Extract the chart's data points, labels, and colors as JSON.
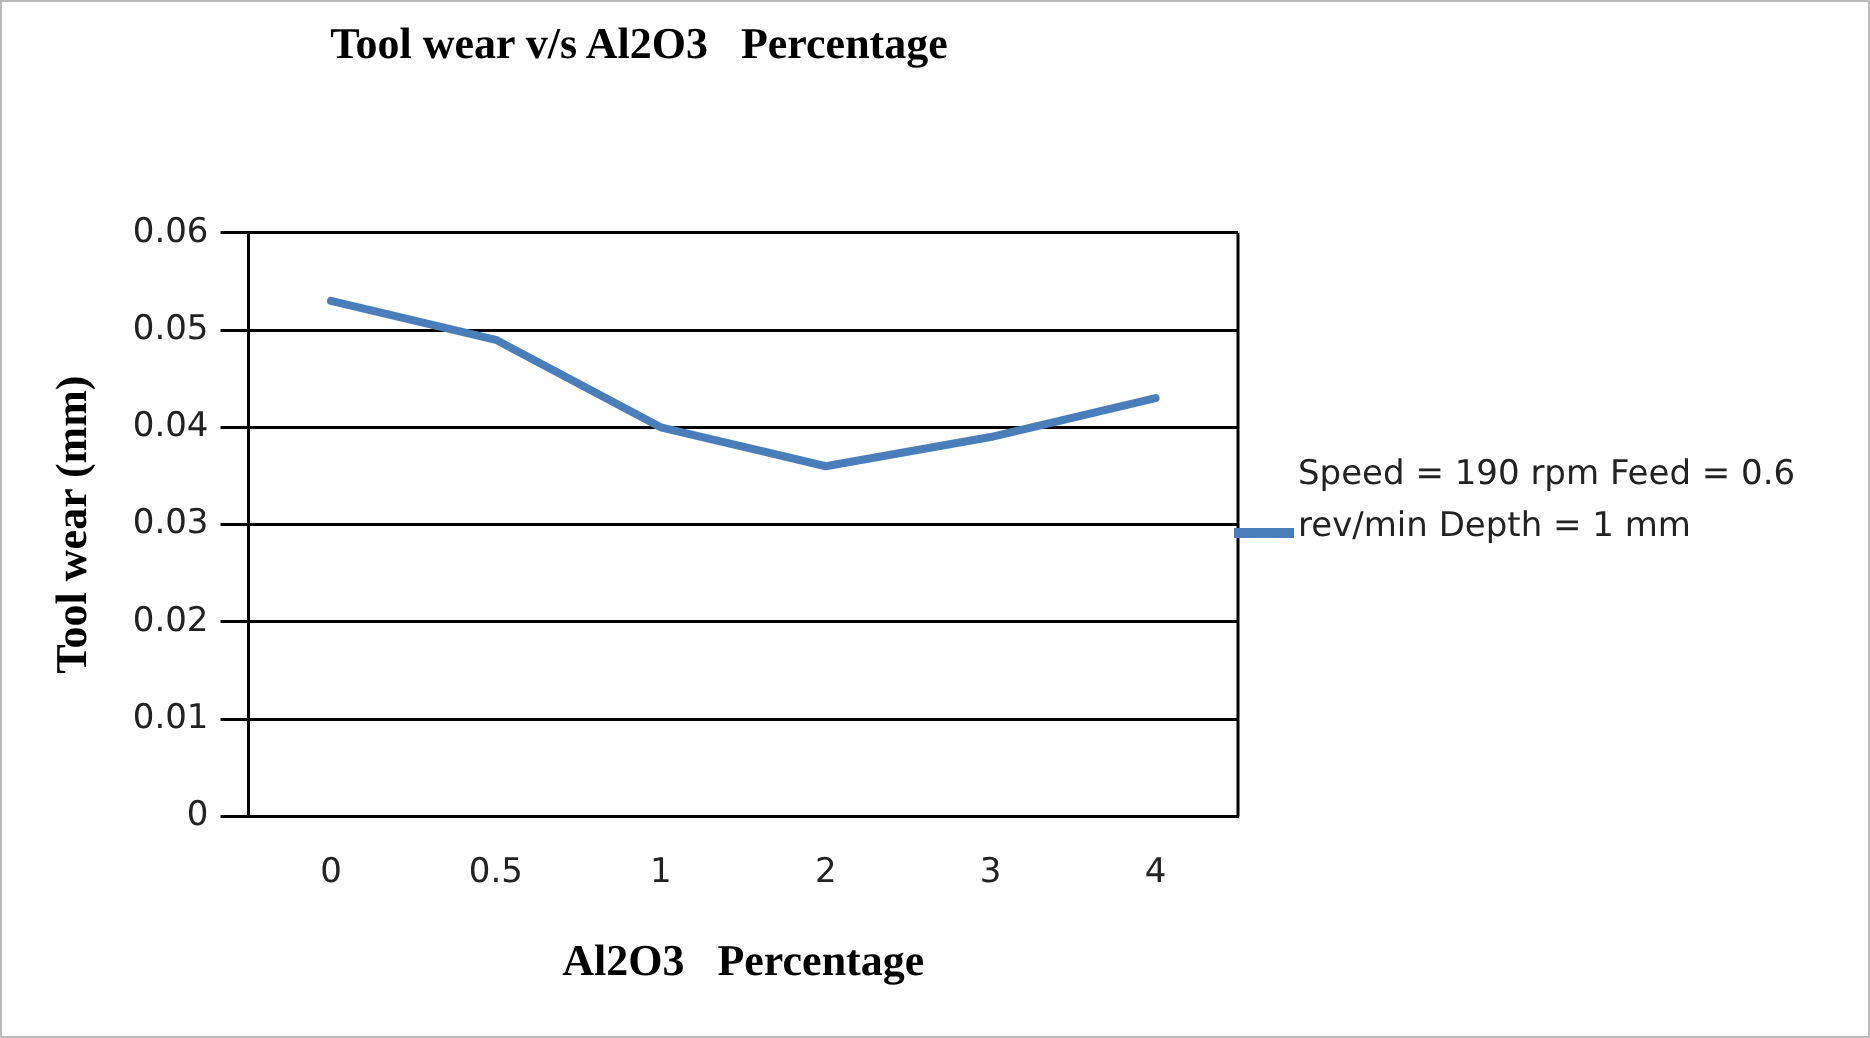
{
  "chart_data": {
    "type": "line",
    "title": "Tool wear v/s Al2O3   Percentage",
    "xlabel": "Al2O3   Percentage",
    "ylabel": "Tool wear (mm)",
    "categories": [
      "0",
      "0.5",
      "1",
      "2",
      "3",
      "4"
    ],
    "series": [
      {
        "name": "Speed = 190 rpm Feed = 0.6 rev/min Depth = 1 mm",
        "color": "#4a7ebb",
        "values": [
          0.053,
          0.049,
          0.04,
          0.036,
          0.039,
          0.043
        ]
      }
    ],
    "ylim": [
      0,
      0.06
    ],
    "yticks": [
      0,
      0.01,
      0.02,
      0.03,
      0.04,
      0.05,
      0.06
    ],
    "grid": "y",
    "legend": "right",
    "marker": "none",
    "line_style": "solid"
  }
}
